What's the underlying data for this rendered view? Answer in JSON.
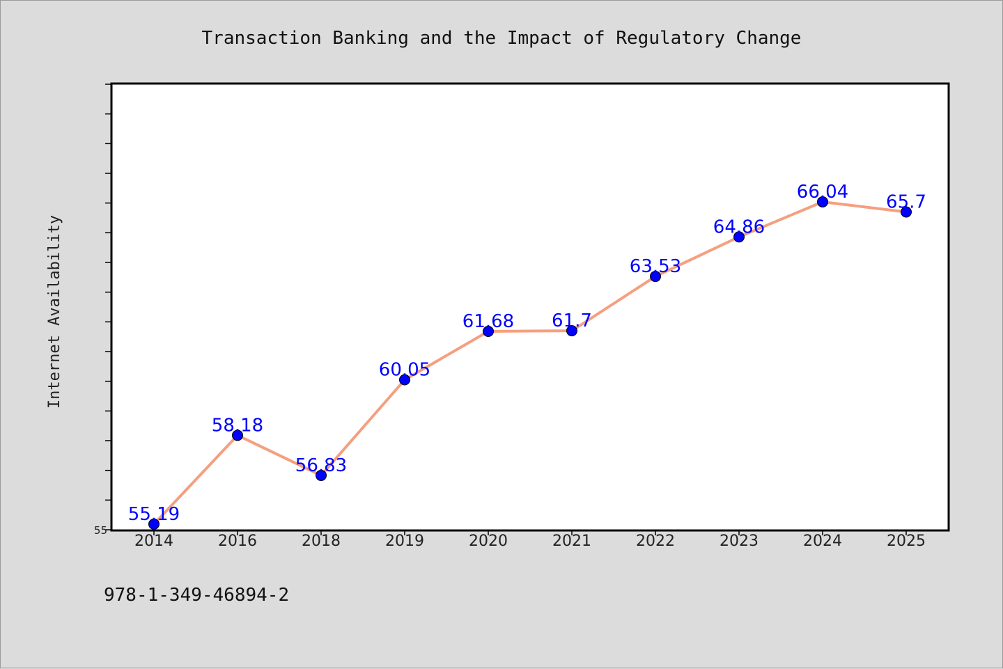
{
  "footer": {
    "code": "978-1-349-46894-2"
  },
  "chart_data": {
    "type": "line",
    "title": "Transaction Banking and the Impact of Regulatory Change",
    "xlabel": "",
    "ylabel": "Internet Availability",
    "categories": [
      "2014",
      "2016",
      "2018",
      "2019",
      "2020",
      "2021",
      "2022",
      "2023",
      "2024",
      "2025"
    ],
    "series": [
      {
        "values": [
          55.19,
          58.18,
          56.83,
          60.05,
          61.68,
          61.7,
          63.53,
          64.86,
          66.04,
          65.7
        ],
        "data_labels": [
          "55.19",
          "58.18",
          "56.83",
          "60.05",
          "61.68",
          "61.7",
          "63.53",
          "64.86",
          "66.04",
          "65.7"
        ]
      }
    ],
    "ylim": [
      55,
      70
    ],
    "y_tick_labels": [
      "55"
    ],
    "grid": false,
    "legend": false,
    "colors": {
      "line": "#f4a080",
      "marker": "#0000ff",
      "label": "#0000ff"
    }
  }
}
